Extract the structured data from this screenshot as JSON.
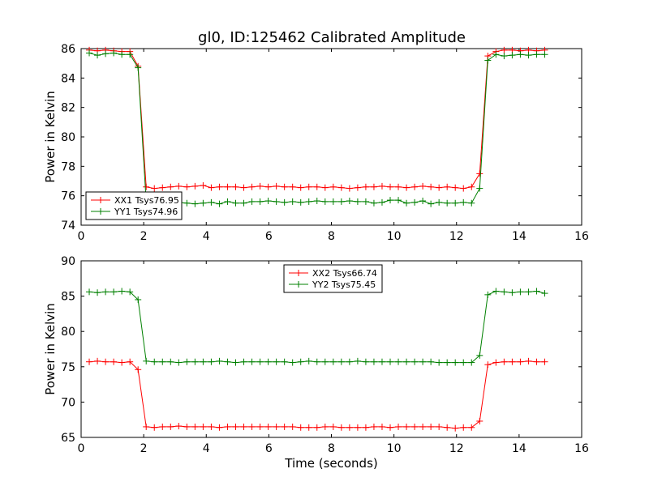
{
  "title": "gl0, ID:125462 Calibrated Amplitude",
  "colors": {
    "red": "#ff0000",
    "green": "#008000"
  },
  "chart_data": [
    {
      "type": "line",
      "title": "gl0, ID:125462 Calibrated Amplitude",
      "xlabel": "",
      "ylabel": "Power in Kelvin",
      "xlim": [
        0,
        16
      ],
      "ylim": [
        74,
        86
      ],
      "xticks": [
        "0",
        "2",
        "4",
        "6",
        "8",
        "10",
        "12",
        "14",
        "16"
      ],
      "yticks": [
        "74",
        "76",
        "78",
        "80",
        "82",
        "84",
        "86"
      ],
      "legend_placement": "lower-left",
      "x": [
        0.26,
        0.52,
        0.78,
        1.04,
        1.3,
        1.56,
        1.82,
        2.08,
        2.34,
        2.6,
        2.86,
        3.12,
        3.38,
        3.64,
        3.9,
        4.16,
        4.42,
        4.68,
        4.94,
        5.2,
        5.46,
        5.72,
        5.98,
        6.24,
        6.5,
        6.76,
        7.02,
        7.28,
        7.54,
        7.8,
        8.06,
        8.32,
        8.58,
        8.84,
        9.1,
        9.36,
        9.62,
        9.88,
        10.14,
        10.4,
        10.66,
        10.92,
        11.18,
        11.44,
        11.7,
        11.96,
        12.22,
        12.48,
        12.74,
        13.0,
        13.26,
        13.52,
        13.78,
        14.04,
        14.3,
        14.56,
        14.82
      ],
      "series": [
        {
          "name": "XX1 Tsys76.95",
          "color": "#ff0000",
          "values": [
            85.9,
            85.85,
            85.9,
            85.85,
            85.8,
            85.8,
            84.8,
            76.6,
            76.5,
            76.55,
            76.6,
            76.65,
            76.6,
            76.65,
            76.7,
            76.55,
            76.6,
            76.6,
            76.6,
            76.55,
            76.6,
            76.65,
            76.6,
            76.65,
            76.6,
            76.6,
            76.55,
            76.6,
            76.6,
            76.55,
            76.6,
            76.55,
            76.5,
            76.55,
            76.6,
            76.6,
            76.65,
            76.6,
            76.6,
            76.55,
            76.6,
            76.65,
            76.6,
            76.55,
            76.6,
            76.55,
            76.5,
            76.6,
            77.5,
            85.5,
            85.8,
            85.9,
            85.9,
            85.85,
            85.9,
            85.85,
            85.9
          ]
        },
        {
          "name": "YY1 Tsys74.96",
          "color": "#008000",
          "values": [
            85.7,
            85.55,
            85.65,
            85.7,
            85.6,
            85.6,
            84.7,
            75.6,
            75.55,
            75.5,
            75.5,
            75.55,
            75.5,
            75.45,
            75.5,
            75.55,
            75.45,
            75.6,
            75.5,
            75.5,
            75.6,
            75.6,
            75.65,
            75.6,
            75.55,
            75.6,
            75.55,
            75.6,
            75.65,
            75.6,
            75.6,
            75.6,
            75.65,
            75.6,
            75.6,
            75.5,
            75.55,
            75.7,
            75.7,
            75.5,
            75.55,
            75.65,
            75.45,
            75.55,
            75.5,
            75.5,
            75.55,
            75.5,
            76.5,
            85.2,
            85.6,
            85.5,
            85.55,
            85.6,
            85.55,
            85.6,
            85.6
          ]
        }
      ]
    },
    {
      "type": "line",
      "title": "",
      "xlabel": "Time (seconds)",
      "ylabel": "Power in Kelvin",
      "xlim": [
        0,
        16
      ],
      "ylim": [
        65,
        90
      ],
      "xticks": [
        "0",
        "2",
        "4",
        "6",
        "8",
        "10",
        "12",
        "14",
        "16"
      ],
      "yticks": [
        "65",
        "70",
        "75",
        "80",
        "85",
        "90"
      ],
      "legend_placement": "upper-center",
      "x": [
        0.26,
        0.52,
        0.78,
        1.04,
        1.3,
        1.56,
        1.82,
        2.08,
        2.34,
        2.6,
        2.86,
        3.12,
        3.38,
        3.64,
        3.9,
        4.16,
        4.42,
        4.68,
        4.94,
        5.2,
        5.46,
        5.72,
        5.98,
        6.24,
        6.5,
        6.76,
        7.02,
        7.28,
        7.54,
        7.8,
        8.06,
        8.32,
        8.58,
        8.84,
        9.1,
        9.36,
        9.62,
        9.88,
        10.14,
        10.4,
        10.66,
        10.92,
        11.18,
        11.44,
        11.7,
        11.96,
        12.22,
        12.48,
        12.74,
        13.0,
        13.26,
        13.52,
        13.78,
        14.04,
        14.3,
        14.56,
        14.82
      ],
      "series": [
        {
          "name": "XX2 Tsys66.74",
          "color": "#ff0000",
          "values": [
            75.7,
            75.8,
            75.7,
            75.7,
            75.6,
            75.7,
            74.6,
            66.5,
            66.4,
            66.5,
            66.5,
            66.6,
            66.5,
            66.5,
            66.5,
            66.5,
            66.4,
            66.5,
            66.5,
            66.5,
            66.5,
            66.5,
            66.5,
            66.5,
            66.5,
            66.5,
            66.4,
            66.4,
            66.4,
            66.5,
            66.5,
            66.4,
            66.4,
            66.4,
            66.4,
            66.5,
            66.5,
            66.4,
            66.5,
            66.5,
            66.5,
            66.5,
            66.5,
            66.5,
            66.4,
            66.3,
            66.4,
            66.4,
            67.3,
            75.3,
            75.6,
            75.7,
            75.7,
            75.7,
            75.8,
            75.7,
            75.7
          ]
        },
        {
          "name": "YY2 Tsys75.45",
          "color": "#008000",
          "values": [
            85.6,
            85.5,
            85.6,
            85.6,
            85.7,
            85.6,
            84.5,
            75.8,
            75.7,
            75.7,
            75.7,
            75.6,
            75.7,
            75.7,
            75.7,
            75.7,
            75.8,
            75.7,
            75.6,
            75.7,
            75.7,
            75.7,
            75.7,
            75.7,
            75.7,
            75.6,
            75.7,
            75.8,
            75.7,
            75.7,
            75.7,
            75.7,
            75.7,
            75.8,
            75.7,
            75.7,
            75.7,
            75.7,
            75.7,
            75.7,
            75.7,
            75.7,
            75.7,
            75.6,
            75.6,
            75.6,
            75.6,
            75.6,
            76.6,
            85.2,
            85.7,
            85.6,
            85.5,
            85.6,
            85.6,
            85.7,
            85.4
          ]
        }
      ]
    }
  ]
}
